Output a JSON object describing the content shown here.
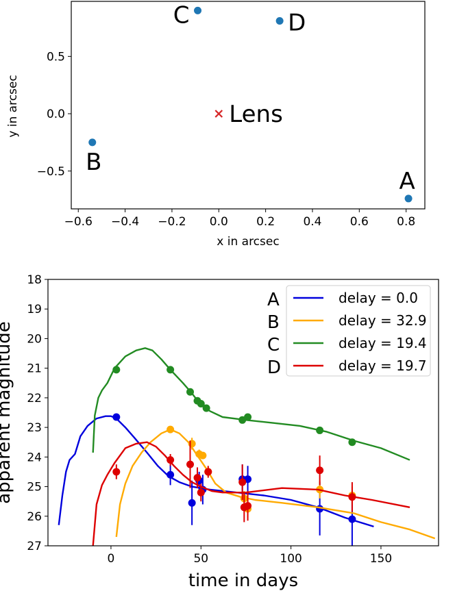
{
  "chart_data": [
    {
      "type": "scatter",
      "title": "",
      "xlabel": "x in arcsec",
      "ylabel": "y in arcsec",
      "xlim": [
        -0.63,
        0.88
      ],
      "ylim": [
        -0.83,
        0.98
      ],
      "xticks": [
        "−0.6",
        "−0.4",
        "−0.2",
        "0.0",
        "0.2",
        "0.4",
        "0.6",
        "0.8"
      ],
      "xtick_values": [
        -0.6,
        -0.4,
        -0.2,
        0.0,
        0.2,
        0.4,
        0.6,
        0.8
      ],
      "yticks": [
        "−0.5",
        "0.0",
        "0.5"
      ],
      "ytick_values": [
        -0.5,
        0.0,
        0.5
      ],
      "images": [
        {
          "label": "A",
          "x": 0.81,
          "y": -0.74
        },
        {
          "label": "B",
          "x": -0.54,
          "y": -0.25
        },
        {
          "label": "C",
          "x": -0.09,
          "y": 0.9
        },
        {
          "label": "D",
          "x": 0.26,
          "y": 0.81
        }
      ],
      "lens": {
        "label": "Lens",
        "x": 0.0,
        "y": 0.0
      },
      "colors": {
        "images": "#1f77b4",
        "lens": "#d62728"
      }
    },
    {
      "type": "line",
      "title": "",
      "xlabel": "time in days",
      "ylabel": "apparent magnitude",
      "xlim": [
        -35,
        182
      ],
      "ylim": [
        27,
        18
      ],
      "y_inverted": true,
      "xticks": [
        "0",
        "50",
        "100",
        "150"
      ],
      "xtick_values": [
        0,
        50,
        100,
        150
      ],
      "yticks": [
        "18",
        "19",
        "20",
        "21",
        "22",
        "23",
        "24",
        "25",
        "26",
        "27"
      ],
      "ytick_values": [
        18,
        19,
        20,
        21,
        22,
        23,
        24,
        25,
        26,
        27
      ],
      "legend": {
        "placement": "top-right"
      },
      "series": [
        {
          "name": "delay = 0.0",
          "image_label": "A",
          "color": "#0000dd",
          "curve": [
            [
              -29,
              26.3
            ],
            [
              -27,
              25.3
            ],
            [
              -25,
              24.5
            ],
            [
              -23,
              24.1
            ],
            [
              -20,
              23.9
            ],
            [
              -17,
              23.3
            ],
            [
              -13,
              22.95
            ],
            [
              -8,
              22.7
            ],
            [
              -3,
              22.62
            ],
            [
              0,
              22.62
            ],
            [
              3,
              22.7
            ],
            [
              8,
              23.0
            ],
            [
              13,
              23.35
            ],
            [
              20,
              23.85
            ],
            [
              26,
              24.3
            ],
            [
              32,
              24.65
            ],
            [
              38,
              24.85
            ],
            [
              45,
              25.0
            ],
            [
              55,
              25.1
            ],
            [
              70,
              25.2
            ],
            [
              85,
              25.3
            ],
            [
              100,
              25.45
            ],
            [
              115,
              25.7
            ],
            [
              130,
              26.05
            ],
            [
              146,
              26.35
            ]
          ],
          "points": [
            [
              3,
              22.65,
              0.05
            ],
            [
              33,
              24.6,
              0.35
            ],
            [
              45,
              25.55,
              0.75
            ],
            [
              49,
              24.8,
              0.3
            ],
            [
              51,
              25.1,
              0.5
            ],
            [
              73,
              24.75,
              0.5
            ],
            [
              76,
              24.75,
              0.45
            ],
            [
              116,
              25.75,
              0.9
            ],
            [
              134,
              26.1,
              0.9
            ]
          ]
        },
        {
          "name": "delay = 32.9",
          "image_label": "B",
          "color": "#ffaa00",
          "curve": [
            [
              3,
              26.7
            ],
            [
              5,
              25.6
            ],
            [
              8,
              24.9
            ],
            [
              12,
              24.3
            ],
            [
              17,
              23.85
            ],
            [
              22,
              23.5
            ],
            [
              28,
              23.2
            ],
            [
              33,
              23.07
            ],
            [
              38,
              23.2
            ],
            [
              43,
              23.5
            ],
            [
              48,
              23.95
            ],
            [
              53,
              24.4
            ],
            [
              58,
              24.9
            ],
            [
              64,
              25.2
            ],
            [
              72,
              25.35
            ],
            [
              80,
              25.45
            ],
            [
              95,
              25.55
            ],
            [
              115,
              25.7
            ],
            [
              135,
              25.9
            ],
            [
              150,
              26.2
            ],
            [
              166,
              26.45
            ],
            [
              180,
              26.75
            ]
          ],
          "points": [
            [
              33,
              23.07,
              0.1
            ],
            [
              45,
              23.55,
              0.2
            ],
            [
              49,
              23.9,
              0.15
            ],
            [
              51,
              23.95,
              0.1
            ],
            [
              54,
              24.5,
              0.15
            ],
            [
              74,
              25.4,
              0.25
            ],
            [
              76,
              25.75,
              0.3
            ],
            [
              116,
              25.1,
              0.3
            ],
            [
              134,
              25.3,
              0.3
            ]
          ]
        },
        {
          "name": "delay = 19.4",
          "image_label": "C",
          "color": "#228b22",
          "curve": [
            [
              -10,
              23.85
            ],
            [
              -9,
              22.6
            ],
            [
              -7,
              22.0
            ],
            [
              -5,
              21.75
            ],
            [
              -2,
              21.5
            ],
            [
              2,
              21.0
            ],
            [
              8,
              20.6
            ],
            [
              14,
              20.4
            ],
            [
              19,
              20.32
            ],
            [
              23,
              20.4
            ],
            [
              28,
              20.7
            ],
            [
              33,
              21.05
            ],
            [
              40,
              21.5
            ],
            [
              45,
              21.85
            ],
            [
              50,
              22.25
            ],
            [
              55,
              22.45
            ],
            [
              62,
              22.65
            ],
            [
              75,
              22.75
            ],
            [
              90,
              22.85
            ],
            [
              105,
              22.95
            ],
            [
              120,
              23.15
            ],
            [
              135,
              23.45
            ],
            [
              150,
              23.7
            ],
            [
              166,
              24.1
            ]
          ],
          "points": [
            [
              3,
              21.05,
              0.05
            ],
            [
              33,
              21.05,
              0.05
            ],
            [
              44,
              21.8,
              0.05
            ],
            [
              48,
              22.1,
              0.05
            ],
            [
              50,
              22.2,
              0.05
            ],
            [
              53,
              22.35,
              0.05
            ],
            [
              73,
              22.75,
              0.05
            ],
            [
              76,
              22.65,
              0.05
            ],
            [
              116,
              23.1,
              0.05
            ],
            [
              134,
              23.5,
              0.05
            ]
          ]
        },
        {
          "name": "delay = 19.7",
          "image_label": "D",
          "color": "#dd0000",
          "curve": [
            [
              -10,
              27.0
            ],
            [
              -8,
              25.6
            ],
            [
              -5,
              24.95
            ],
            [
              -2,
              24.6
            ],
            [
              2,
              24.2
            ],
            [
              8,
              23.7
            ],
            [
              14,
              23.55
            ],
            [
              20,
              23.5
            ],
            [
              25,
              23.65
            ],
            [
              30,
              23.95
            ],
            [
              35,
              24.3
            ],
            [
              40,
              24.6
            ],
            [
              45,
              24.85
            ],
            [
              50,
              25.0
            ],
            [
              56,
              25.15
            ],
            [
              62,
              25.2
            ],
            [
              75,
              25.2
            ],
            [
              95,
              25.05
            ],
            [
              115,
              25.1
            ],
            [
              130,
              25.3
            ],
            [
              145,
              25.45
            ],
            [
              166,
              25.7
            ]
          ],
          "points": [
            [
              3,
              24.5,
              0.25
            ],
            [
              33,
              24.1,
              0.2
            ],
            [
              44,
              24.25,
              0.8
            ],
            [
              48,
              24.7,
              0.35
            ],
            [
              50,
              25.2,
              0.3
            ],
            [
              54,
              24.5,
              0.2
            ],
            [
              73,
              24.85,
              0.6
            ],
            [
              74,
              25.7,
              0.5
            ],
            [
              76,
              25.65,
              0.5
            ],
            [
              116,
              24.45,
              0.5
            ],
            [
              134,
              25.35,
              0.5
            ]
          ]
        }
      ]
    }
  ]
}
